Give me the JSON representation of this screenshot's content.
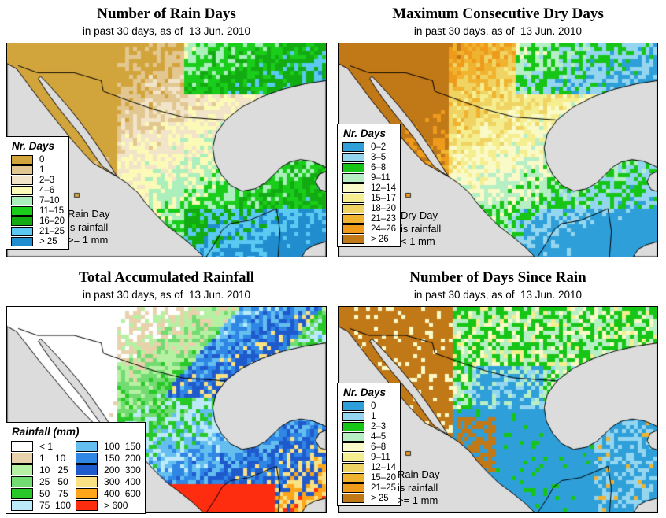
{
  "map_style": {
    "sea_color": "#DCDCDC",
    "coast_color": "#000000",
    "background": "#FFFFFF"
  },
  "panels": [
    {
      "id": "rain-days",
      "title": "Number of Rain Days",
      "subtitle": "in past 30 days, as of  13 Jun. 2010",
      "legend": {
        "title": "Nr. Days",
        "entries": [
          {
            "label": "0",
            "color": "#D2A53C"
          },
          {
            "label": "1",
            "color": "#E2C791"
          },
          {
            "label": "2–3",
            "color": "#F1E4C9"
          },
          {
            "label": "4–6",
            "color": "#FBFAB7"
          },
          {
            "label": "7–10",
            "color": "#ABEFBD"
          },
          {
            "label": "11–15",
            "color": "#1ACD1A"
          },
          {
            "label": "16–20",
            "color": "#12AB12"
          },
          {
            "label": "21–25",
            "color": "#5BC9F2"
          },
          {
            "label": "> 25",
            "color": "#1F8DCE"
          }
        ],
        "note": "Rain Day\nis rainfall\n>= 1 mm"
      }
    },
    {
      "id": "dry-days",
      "title": "Maximum Consecutive Dry Days",
      "subtitle": "in past 30 days, as of  13 Jun. 2010",
      "legend": {
        "title": "Nr. Days",
        "entries": [
          {
            "label": "0–2",
            "color": "#2E9FD9"
          },
          {
            "label": "3–5",
            "color": "#94D6F0"
          },
          {
            "label": "6–8",
            "color": "#17C517"
          },
          {
            "label": "9–11",
            "color": "#B6EFC4"
          },
          {
            "label": "12–14",
            "color": "#FAFAC8"
          },
          {
            "label": "15–17",
            "color": "#F5EE90"
          },
          {
            "label": "18–20",
            "color": "#F0D463"
          },
          {
            "label": "21–23",
            "color": "#F0B330"
          },
          {
            "label": "24–26",
            "color": "#EE9A1B"
          },
          {
            "label": "> 26",
            "color": "#C17817"
          }
        ],
        "note": "Dry Day\nis rainfall\n< 1 mm"
      }
    },
    {
      "id": "accumulated-rainfall",
      "title": "Total Accumulated Rainfall",
      "subtitle": "in past 30 days, as of  13 Jun. 2010",
      "legend": {
        "title": "Rainfall (mm)",
        "entries": [
          {
            "label": "< 1",
            "color": "#FFFFFF"
          },
          {
            "label": "1    10",
            "color": "#E8D2AC"
          },
          {
            "label": "10   25",
            "color": "#B6F0A2"
          },
          {
            "label": "25   50",
            "color": "#72DB72"
          },
          {
            "label": "50   75",
            "color": "#28C828"
          },
          {
            "label": "75  100",
            "color": "#BCEAF8"
          },
          {
            "label": "100  150",
            "color": "#64BFF0"
          },
          {
            "label": "150  200",
            "color": "#2F86E4"
          },
          {
            "label": "200  300",
            "color": "#1F5ACC"
          },
          {
            "label": "300  400",
            "color": "#FAE183"
          },
          {
            "label": "400  600",
            "color": "#FFA519"
          },
          {
            "label": "> 600",
            "color": "#FF2D0F"
          }
        ]
      }
    },
    {
      "id": "days-since-rain",
      "title": "Number of Days Since Rain",
      "subtitle": "in past 30 days, as of  13 Jun. 2010",
      "legend": {
        "title": "Nr. Days",
        "entries": [
          {
            "label": "0",
            "color": "#2E9FD9"
          },
          {
            "label": "1",
            "color": "#94D6F0"
          },
          {
            "label": "2–3",
            "color": "#17C517"
          },
          {
            "label": "4–5",
            "color": "#B6EFC4"
          },
          {
            "label": "6–8",
            "color": "#FAFAC8"
          },
          {
            "label": "9–11",
            "color": "#F5EE90"
          },
          {
            "label": "12–14",
            "color": "#F0D463"
          },
          {
            "label": "15–20",
            "color": "#F0B330"
          },
          {
            "label": "21–25",
            "color": "#EE9A1B"
          },
          {
            "label": "> 25",
            "color": "#C17817"
          }
        ],
        "note": "Rain Day\nis rainfall\n>= 1 mm"
      }
    }
  ]
}
